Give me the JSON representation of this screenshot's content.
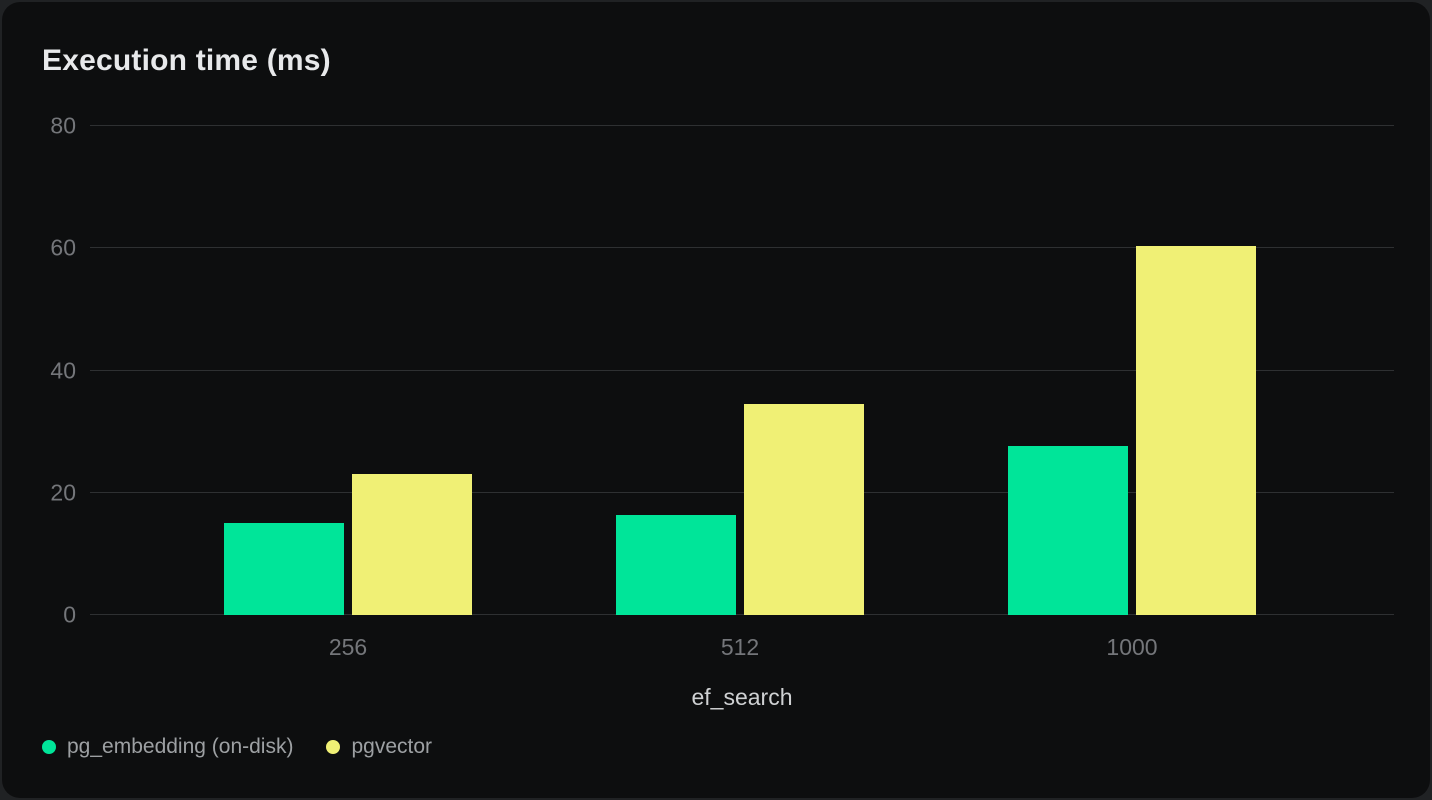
{
  "page": {
    "background": "#202224",
    "card_background": "#0d0e0f"
  },
  "chart_data": {
    "type": "bar",
    "title": "Execution time (ms)",
    "xlabel": "ef_search",
    "ylabel": "",
    "categories": [
      "256",
      "512",
      "1000"
    ],
    "series": [
      {
        "name": "pg_embedding (on-disk)",
        "color": "#00e599",
        "values": [
          15,
          16.3,
          27.6
        ]
      },
      {
        "name": "pgvector",
        "color": "#f0f075",
        "values": [
          23,
          34.5,
          60.3
        ]
      }
    ],
    "ylim": [
      0,
      80
    ],
    "y_ticks": [
      80,
      60,
      40,
      20,
      0
    ],
    "grid": "horizontal",
    "legend_position": "bottom-left",
    "colors": {
      "grid": "#2e3032",
      "tick_label": "#74767a",
      "axis_label": "#cfd1d3",
      "legend_label": "#9da0a3",
      "title": "#e8e9eb"
    }
  }
}
